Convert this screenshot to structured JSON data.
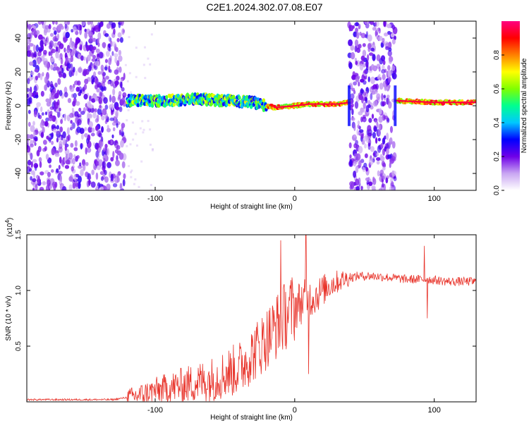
{
  "title": "C2E1.2024.302.07.08.E07",
  "colors": {
    "snr_line": "#e8332a",
    "frame": "#000000"
  },
  "chart_data": [
    {
      "type": "heatmap",
      "xlabel": "Height of straight line (km)",
      "ylabel": "Frequency (Hz)",
      "xlim": [
        -192,
        130
      ],
      "ylim": [
        -50,
        50
      ],
      "xticks": [
        -100,
        0,
        100
      ],
      "yticks": [
        -40,
        -20,
        0,
        20,
        40
      ],
      "colorbar": {
        "label": "Normalized spectral amplitude",
        "range": [
          0,
          1
        ],
        "ticks": [
          "0.0",
          "0.2",
          "0.4",
          "0.6",
          "0.8"
        ],
        "colormap": [
          "#ffffff",
          "#c9a6f2",
          "#6f00e8",
          "#0000ff",
          "#00c8ff",
          "#00ff90",
          "#80ff00",
          "#ffff00",
          "#ff8000",
          "#ff0000",
          "#ff0080"
        ]
      },
      "noise_regions": [
        [
          -192,
          -122
        ],
        [
          39,
          72
        ]
      ],
      "signal_ridge": [
        [
          -120,
          3
        ],
        [
          -90,
          3
        ],
        [
          -70,
          4
        ],
        [
          -50,
          3
        ],
        [
          -30,
          2
        ],
        [
          -15,
          -1
        ],
        [
          0,
          0
        ],
        [
          10,
          1
        ],
        [
          30,
          1
        ],
        [
          39,
          2
        ],
        [
          72,
          3
        ],
        [
          100,
          2
        ],
        [
          130,
          2
        ]
      ]
    },
    {
      "type": "line",
      "xlabel": "Height of straight line (km)",
      "ylabel": "SNR (10 * v/v)",
      "yscale_label": "(x10",
      "yscale_exp": "4",
      "yscale_suffix": ")",
      "xlim": [
        -192,
        130
      ],
      "ylim": [
        0,
        1.5
      ],
      "xticks": [
        -100,
        0,
        100
      ],
      "yticks": [
        0.5,
        1.0,
        1.5
      ],
      "series": [
        {
          "points": [
            [
              -192,
              0.02
            ],
            [
              -130,
              0.02
            ],
            [
              -115,
              0.05
            ],
            [
              -100,
              0.1
            ],
            [
              -80,
              0.15
            ],
            [
              -60,
              0.2
            ],
            [
              -40,
              0.3
            ],
            [
              -25,
              0.5
            ],
            [
              -15,
              0.65
            ],
            [
              -5,
              0.8
            ],
            [
              5,
              0.9
            ],
            [
              15,
              0.95
            ],
            [
              25,
              1.05
            ],
            [
              35,
              1.1
            ],
            [
              45,
              1.13
            ],
            [
              55,
              1.13
            ],
            [
              65,
              1.12
            ],
            [
              80,
              1.1
            ],
            [
              95,
              1.1
            ],
            [
              110,
              1.08
            ],
            [
              130,
              1.08
            ]
          ],
          "spikes": [
            [
              -10,
              1.45
            ],
            [
              8,
              1.5
            ],
            [
              10,
              0.25
            ],
            [
              93,
              1.4
            ],
            [
              95,
              0.75
            ]
          ]
        }
      ]
    }
  ]
}
